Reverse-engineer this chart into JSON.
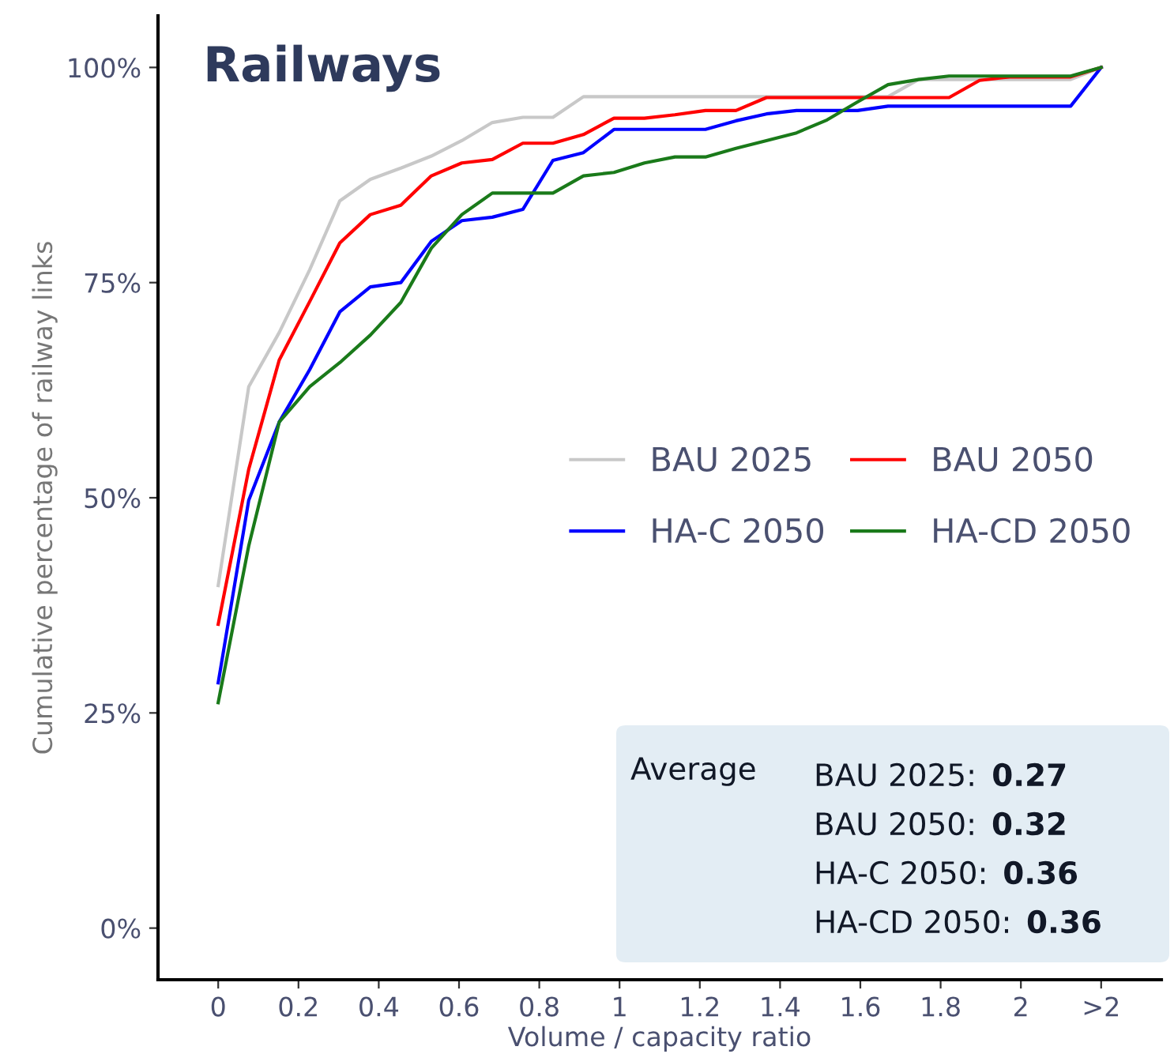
{
  "chart_data": {
    "type": "line",
    "title": "Railways",
    "xlabel": "Volume / capacity ratio",
    "ylabel": "Cumulative percentage of railway links",
    "x": [
      0,
      0.076,
      0.152,
      0.228,
      0.303,
      0.379,
      0.455,
      0.531,
      0.607,
      0.683,
      0.759,
      0.834,
      0.91,
      0.986,
      1.062,
      1.138,
      1.214,
      1.29,
      1.366,
      1.441,
      1.517,
      1.593,
      1.669,
      1.745,
      1.821,
      1.897,
      1.972,
      2.048,
      2.124,
      2.2
    ],
    "series": [
      {
        "name": "BAU 2025",
        "color": "#c8c8c8",
        "values": [
          39.8,
          62.9,
          69.2,
          76.5,
          84.5,
          87.0,
          88.3,
          89.7,
          91.5,
          93.6,
          94.2,
          94.2,
          96.6,
          96.6,
          96.6,
          96.6,
          96.6,
          96.6,
          96.6,
          96.6,
          96.6,
          96.6,
          96.6,
          98.6,
          98.6,
          98.6,
          98.6,
          98.6,
          98.6,
          100
        ]
      },
      {
        "name": "HA-C 2050",
        "color": "#0000ff",
        "values": [
          28.5,
          49.7,
          58.8,
          64.9,
          71.6,
          74.5,
          75.0,
          79.8,
          82.2,
          82.6,
          83.5,
          89.2,
          90.1,
          92.8,
          92.8,
          92.8,
          92.8,
          93.8,
          94.6,
          95.0,
          95.0,
          95.0,
          95.5,
          95.5,
          95.5,
          95.5,
          95.5,
          95.5,
          95.5,
          100
        ]
      },
      {
        "name": "BAU 2050",
        "color": "#ff0000",
        "values": [
          35.3,
          53.3,
          66.0,
          72.8,
          79.6,
          82.9,
          84.0,
          87.4,
          88.9,
          89.3,
          91.2,
          91.2,
          92.2,
          94.1,
          94.1,
          94.5,
          95.0,
          95.0,
          96.5,
          96.5,
          96.5,
          96.5,
          96.5,
          96.5,
          96.5,
          98.5,
          98.9,
          98.9,
          98.9,
          100
        ]
      },
      {
        "name": "HA-CD 2050",
        "color": "#1a7a1a",
        "values": [
          26.2,
          44.4,
          58.8,
          62.9,
          65.7,
          68.9,
          72.7,
          79.0,
          82.9,
          85.4,
          85.4,
          85.4,
          87.4,
          87.8,
          88.9,
          89.6,
          89.6,
          90.6,
          91.5,
          92.4,
          93.9,
          96.0,
          98.0,
          98.6,
          99.0,
          99.0,
          99.0,
          99.0,
          99.0,
          100
        ]
      }
    ],
    "xlim": [
      -0.15,
      2.35
    ],
    "xticks": [
      0,
      0.2,
      0.4,
      0.6,
      0.8,
      1,
      1.2,
      1.4,
      1.6,
      1.8,
      2,
      {
        "value": 2.2,
        "label": ">2"
      }
    ],
    "ylim": [
      -6,
      106
    ],
    "yticks": [
      {
        "value": 0,
        "label": "0%"
      },
      {
        "value": 25,
        "label": "25%"
      },
      {
        "value": 50,
        "label": "50%"
      },
      {
        "value": 75,
        "label": "75%"
      },
      {
        "value": 100,
        "label": "100%"
      }
    ],
    "grid": false,
    "legend": "right",
    "marker": "none",
    "line_style": "solid",
    "annotations": [
      "Average",
      "BAU 2025: 0.27",
      "BAU 2050: 0.32",
      "HA-C 2050: 0.36",
      "HA-CD 2050: 0.36"
    ]
  }
}
